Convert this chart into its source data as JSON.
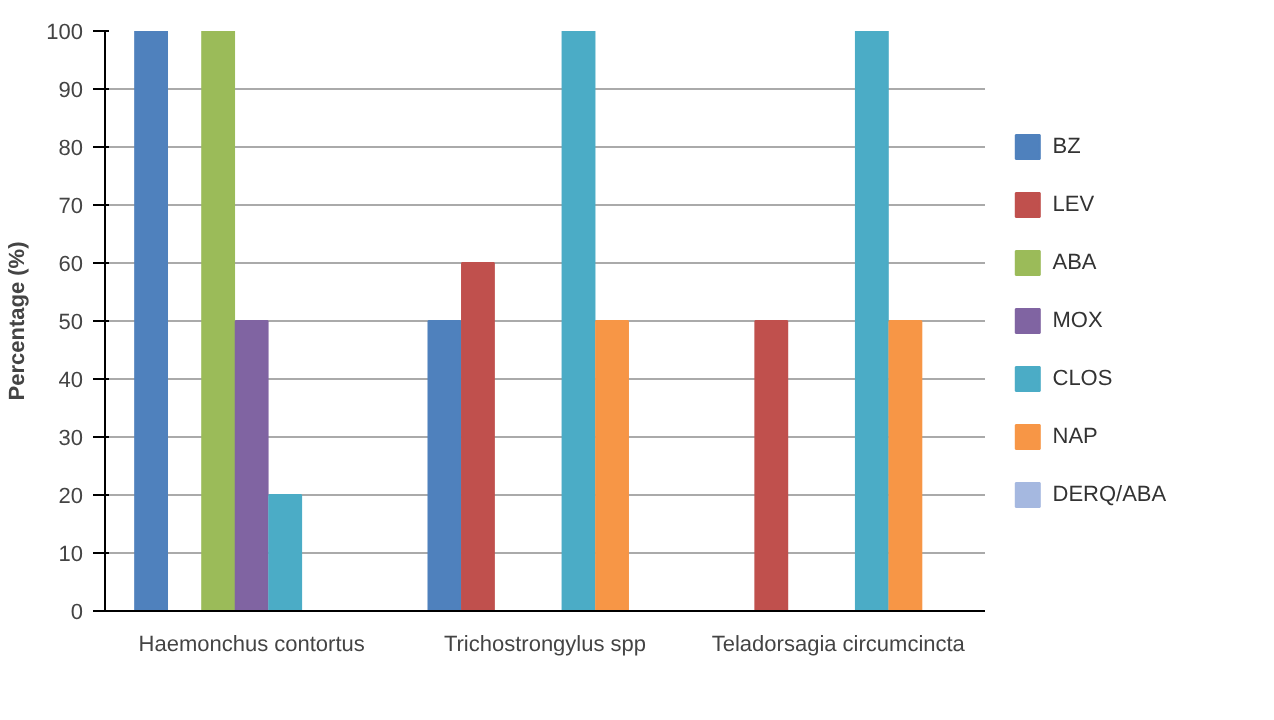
{
  "chart_data": {
    "type": "bar",
    "ylabel": "Percentage (%)",
    "categories": [
      "Haemonchus contortus",
      "Trichostrongylus spp",
      "Teladorsagia circumcincta"
    ],
    "series": [
      {
        "name": "BZ",
        "color": "#4f81bd",
        "values": [
          100,
          50,
          0
        ]
      },
      {
        "name": "LEV",
        "color": "#c0504d",
        "values": [
          0,
          60,
          50
        ]
      },
      {
        "name": "ABA",
        "color": "#9bbb59",
        "values": [
          100,
          0,
          0
        ]
      },
      {
        "name": "MOX",
        "color": "#8064a2",
        "values": [
          50,
          0,
          0
        ]
      },
      {
        "name": "CLOS",
        "color": "#4bacc6",
        "values": [
          20,
          100,
          100
        ]
      },
      {
        "name": "NAP",
        "color": "#f79646",
        "values": [
          0,
          50,
          50
        ]
      },
      {
        "name": "DERQ/ABA",
        "color": "#a5b8e0",
        "values": [
          0,
          0,
          0
        ]
      }
    ],
    "ylim": [
      0,
      100
    ],
    "yticks": [
      0,
      10,
      20,
      30,
      40,
      50,
      60,
      70,
      80,
      90,
      100
    ],
    "grid": "y",
    "legend": "right"
  }
}
